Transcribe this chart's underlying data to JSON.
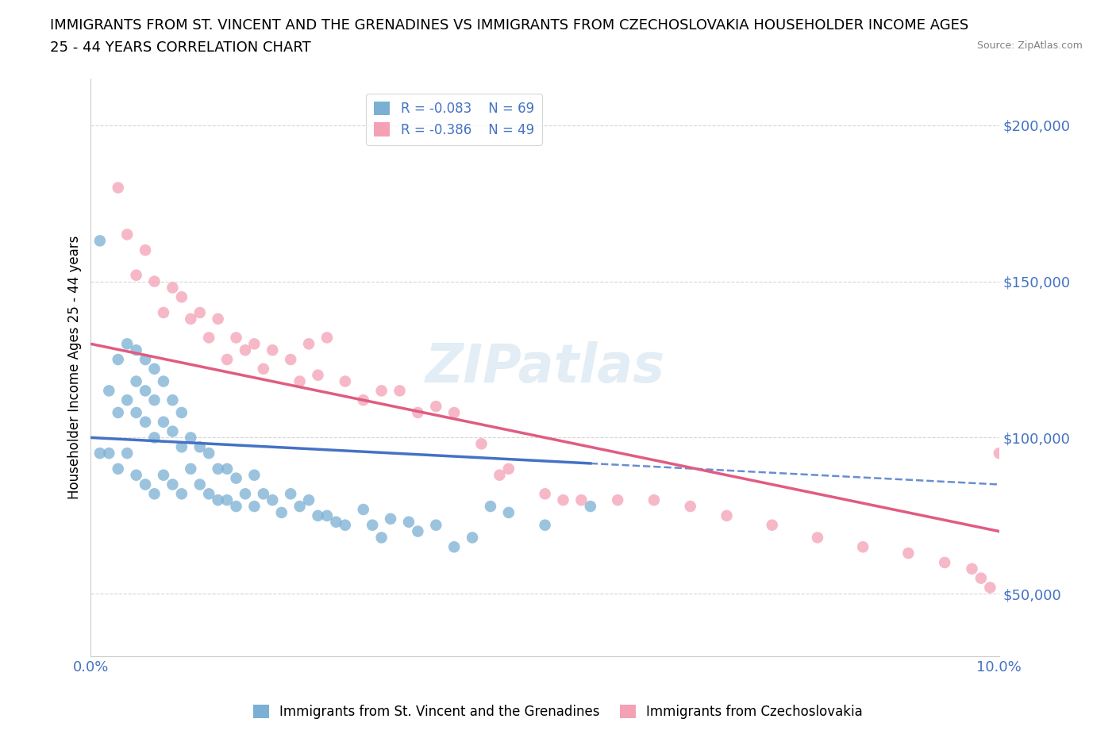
{
  "title_line1": "IMMIGRANTS FROM ST. VINCENT AND THE GRENADINES VS IMMIGRANTS FROM CZECHOSLOVAKIA HOUSEHOLDER INCOME AGES",
  "title_line2": "25 - 44 YEARS CORRELATION CHART",
  "source": "Source: ZipAtlas.com",
  "ylabel": "Householder Income Ages 25 - 44 years",
  "xlim": [
    0.0,
    0.1
  ],
  "ylim": [
    30000,
    215000
  ],
  "yticks": [
    50000,
    100000,
    150000,
    200000
  ],
  "ytick_labels": [
    "$50,000",
    "$100,000",
    "$150,000",
    "$200,000"
  ],
  "xticks": [
    0.0,
    0.02,
    0.04,
    0.06,
    0.08,
    0.1
  ],
  "xtick_labels": [
    "0.0%",
    "",
    "",
    "",
    "",
    "10.0%"
  ],
  "watermark": "ZIPatlas",
  "legend_r1": "R = -0.083",
  "legend_n1": "N = 69",
  "legend_r2": "R = -0.386",
  "legend_n2": "N = 49",
  "color_blue": "#7BAFD4",
  "color_pink": "#F4A0B5",
  "color_blue_line": "#4472C4",
  "color_pink_line": "#E05C80",
  "axis_color": "#4472C4",
  "blue_x": [
    0.001,
    0.001,
    0.002,
    0.002,
    0.003,
    0.003,
    0.003,
    0.004,
    0.004,
    0.004,
    0.005,
    0.005,
    0.005,
    0.005,
    0.006,
    0.006,
    0.006,
    0.006,
    0.007,
    0.007,
    0.007,
    0.007,
    0.008,
    0.008,
    0.008,
    0.009,
    0.009,
    0.009,
    0.01,
    0.01,
    0.01,
    0.011,
    0.011,
    0.012,
    0.012,
    0.013,
    0.013,
    0.014,
    0.014,
    0.015,
    0.015,
    0.016,
    0.016,
    0.017,
    0.018,
    0.018,
    0.019,
    0.02,
    0.021,
    0.022,
    0.023,
    0.024,
    0.025,
    0.026,
    0.027,
    0.028,
    0.03,
    0.031,
    0.032,
    0.033,
    0.035,
    0.036,
    0.038,
    0.04,
    0.042,
    0.044,
    0.046,
    0.05,
    0.055
  ],
  "blue_y": [
    163000,
    95000,
    115000,
    95000,
    125000,
    108000,
    90000,
    130000,
    112000,
    95000,
    128000,
    118000,
    108000,
    88000,
    125000,
    115000,
    105000,
    85000,
    122000,
    112000,
    100000,
    82000,
    118000,
    105000,
    88000,
    112000,
    102000,
    85000,
    108000,
    97000,
    82000,
    100000,
    90000,
    97000,
    85000,
    95000,
    82000,
    90000,
    80000,
    90000,
    80000,
    87000,
    78000,
    82000,
    88000,
    78000,
    82000,
    80000,
    76000,
    82000,
    78000,
    80000,
    75000,
    75000,
    73000,
    72000,
    77000,
    72000,
    68000,
    74000,
    73000,
    70000,
    72000,
    65000,
    68000,
    78000,
    76000,
    72000,
    78000
  ],
  "pink_x": [
    0.003,
    0.004,
    0.005,
    0.006,
    0.007,
    0.008,
    0.009,
    0.01,
    0.011,
    0.012,
    0.013,
    0.014,
    0.015,
    0.016,
    0.017,
    0.018,
    0.019,
    0.02,
    0.022,
    0.023,
    0.024,
    0.025,
    0.026,
    0.028,
    0.03,
    0.032,
    0.034,
    0.036,
    0.038,
    0.04,
    0.043,
    0.046,
    0.05,
    0.054,
    0.058,
    0.062,
    0.066,
    0.07,
    0.075,
    0.08,
    0.085,
    0.09,
    0.094,
    0.097,
    0.098,
    0.099,
    0.1,
    0.045,
    0.052
  ],
  "pink_y": [
    180000,
    165000,
    152000,
    160000,
    150000,
    140000,
    148000,
    145000,
    138000,
    140000,
    132000,
    138000,
    125000,
    132000,
    128000,
    130000,
    122000,
    128000,
    125000,
    118000,
    130000,
    120000,
    132000,
    118000,
    112000,
    115000,
    115000,
    108000,
    110000,
    108000,
    98000,
    90000,
    82000,
    80000,
    80000,
    80000,
    78000,
    75000,
    72000,
    68000,
    65000,
    63000,
    60000,
    58000,
    55000,
    52000,
    95000,
    88000,
    80000
  ]
}
